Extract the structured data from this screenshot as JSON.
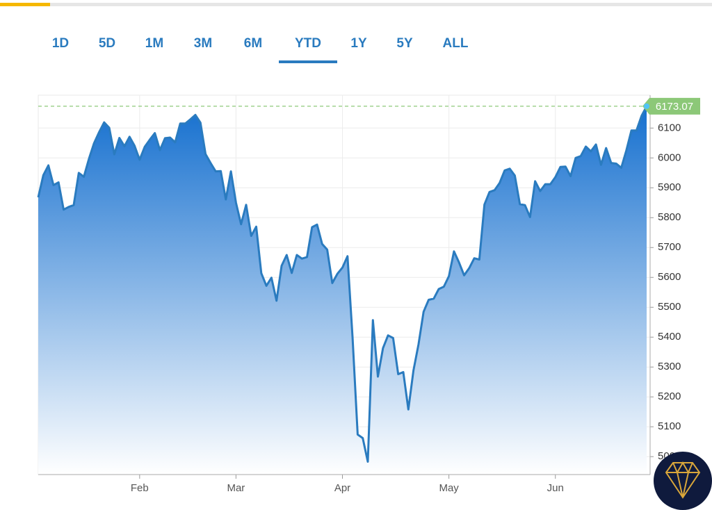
{
  "tabs": [
    "1D",
    "5D",
    "1M",
    "3M",
    "6M",
    "YTD",
    "1Y",
    "5Y",
    "ALL"
  ],
  "selected_tab": "YTD",
  "chart_data": {
    "type": "area",
    "color": "#2a7bbf",
    "categories": [
      null,
      null,
      null,
      null,
      null,
      null,
      null,
      null,
      null,
      null,
      null,
      null,
      null,
      null,
      null,
      null,
      null,
      null,
      null,
      null,
      "Feb",
      null,
      null,
      null,
      null,
      null,
      null,
      null,
      null,
      null,
      null,
      null,
      null,
      null,
      null,
      null,
      null,
      null,
      null,
      "Mar",
      null,
      null,
      null,
      null,
      null,
      null,
      null,
      null,
      null,
      null,
      null,
      null,
      null,
      null,
      null,
      null,
      null,
      null,
      null,
      null,
      "Apr",
      null,
      null,
      null,
      null,
      null,
      null,
      null,
      null,
      null,
      null,
      null,
      null,
      null,
      null,
      null,
      null,
      null,
      null,
      null,
      null,
      "May",
      null,
      null,
      null,
      null,
      null,
      null,
      null,
      null,
      null,
      null,
      null,
      null,
      null,
      null,
      null,
      null,
      null,
      null,
      null,
      null,
      "Jun",
      null,
      null,
      null,
      null,
      null,
      null,
      null,
      null,
      null,
      null,
      null,
      null,
      null,
      null,
      null,
      null,
      null,
      null
    ],
    "values": [
      5868,
      5942,
      5975,
      5909,
      5918,
      5827,
      5836,
      5842,
      5950,
      5937,
      5997,
      6049,
      6086,
      6119,
      6101,
      6012,
      6067,
      6039,
      6071,
      6041,
      5994,
      6037,
      6061,
      6083,
      6026,
      6066,
      6068,
      6052,
      6115,
      6115,
      6129,
      6144,
      6118,
      6013,
      5983,
      5955,
      5956,
      5861,
      5955,
      5850,
      5778,
      5843,
      5739,
      5770,
      5614,
      5572,
      5599,
      5522,
      5639,
      5675,
      5615,
      5675,
      5663,
      5668,
      5768,
      5777,
      5712,
      5693,
      5581,
      5612,
      5633,
      5671,
      5397,
      5074,
      5062,
      4983,
      5457,
      5268,
      5363,
      5406,
      5397,
      5276,
      5283,
      5158,
      5288,
      5376,
      5485,
      5525,
      5529,
      5561,
      5569,
      5604,
      5687,
      5650,
      5607,
      5631,
      5664,
      5660,
      5844,
      5886,
      5892,
      5916,
      5958,
      5964,
      5941,
      5845,
      5842,
      5802,
      5922,
      5889,
      5912,
      5912,
      5936,
      5970,
      5971,
      5939,
      6000,
      6006,
      6038,
      6022,
      6045,
      5977,
      6033,
      5983,
      5981,
      5967,
      6025,
      6092,
      6092,
      6141,
      6173.07
    ],
    "ylim": [
      4940,
      6210
    ],
    "yticks": [
      5000,
      5100,
      5200,
      5300,
      5400,
      5500,
      5600,
      5700,
      5800,
      5900,
      6000,
      6100
    ],
    "grid": true,
    "last_value_color": "#8cc878"
  }
}
